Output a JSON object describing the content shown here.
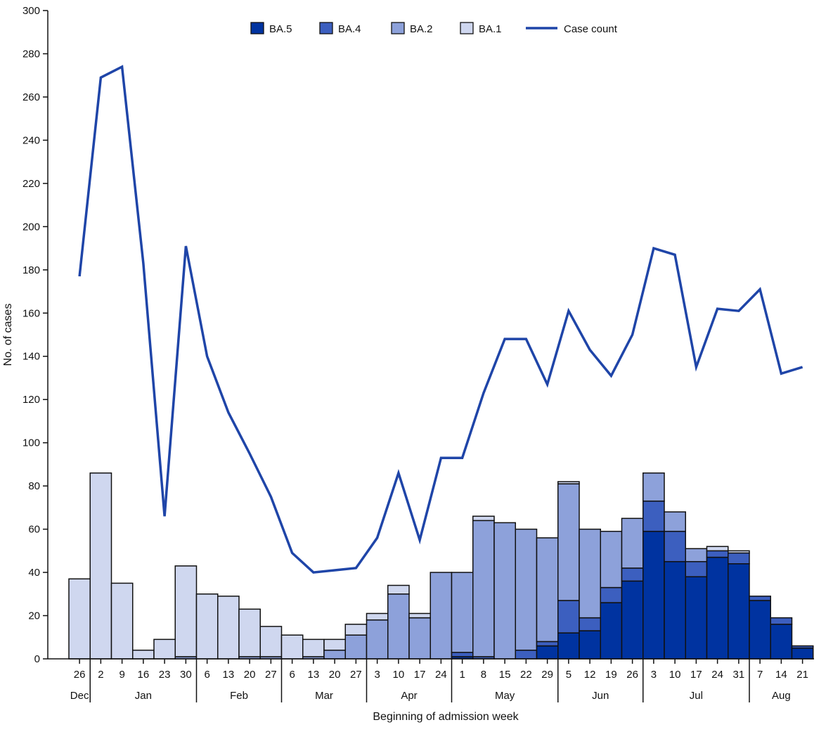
{
  "chart_data": {
    "type": "bar",
    "stacked": true,
    "xlabel": "Beginning of admission week",
    "ylabel": "No. of cases",
    "ylim": [
      0,
      300
    ],
    "yticks": [
      0,
      20,
      40,
      60,
      80,
      100,
      120,
      140,
      160,
      180,
      200,
      220,
      240,
      260,
      280,
      300
    ],
    "legend_position": "top-center",
    "categories": [
      "26",
      "2",
      "9",
      "16",
      "23",
      "30",
      "6",
      "13",
      "20",
      "27",
      "6",
      "13",
      "20",
      "27",
      "3",
      "10",
      "17",
      "24",
      "1",
      "8",
      "15",
      "22",
      "29",
      "5",
      "12",
      "19",
      "26",
      "3",
      "10",
      "17",
      "24",
      "31",
      "7",
      "14",
      "21"
    ],
    "months": [
      {
        "label": "Dec",
        "start": 0,
        "end": 0
      },
      {
        "label": "Jan",
        "start": 1,
        "end": 5
      },
      {
        "label": "Feb",
        "start": 6,
        "end": 9
      },
      {
        "label": "Mar",
        "start": 10,
        "end": 13
      },
      {
        "label": "Apr",
        "start": 14,
        "end": 17
      },
      {
        "label": "May",
        "start": 18,
        "end": 22
      },
      {
        "label": "Jun",
        "start": 23,
        "end": 26
      },
      {
        "label": "Jul",
        "start": 27,
        "end": 31
      },
      {
        "label": "Aug",
        "start": 32,
        "end": 34
      }
    ],
    "series": [
      {
        "name": "BA.5",
        "color": "#0033a0",
        "kind": "bar",
        "values": [
          0,
          0,
          0,
          0,
          0,
          0,
          0,
          0,
          0,
          0,
          0,
          0,
          0,
          0,
          0,
          0,
          0,
          0,
          1,
          0,
          0,
          0,
          6,
          12,
          13,
          26,
          36,
          59,
          45,
          38,
          47,
          44,
          27,
          16,
          5
        ]
      },
      {
        "name": "BA.4",
        "color": "#3c5fbf",
        "kind": "bar",
        "values": [
          0,
          0,
          0,
          0,
          0,
          0,
          0,
          0,
          0,
          0,
          0,
          0,
          0,
          0,
          0,
          0,
          0,
          0,
          2,
          1,
          0,
          4,
          2,
          15,
          6,
          7,
          6,
          14,
          14,
          7,
          3,
          5,
          2,
          3,
          1
        ]
      },
      {
        "name": "BA.2",
        "color": "#8da1da",
        "kind": "bar",
        "values": [
          0,
          0,
          0,
          0,
          0,
          1,
          0,
          0,
          1,
          1,
          0,
          1,
          4,
          11,
          18,
          30,
          19,
          40,
          37,
          63,
          63,
          56,
          48,
          54,
          41,
          26,
          23,
          13,
          9,
          6,
          0,
          0,
          0,
          0,
          0
        ]
      },
      {
        "name": "BA.1",
        "color": "#cfd7ef",
        "kind": "bar",
        "values": [
          37,
          86,
          35,
          4,
          9,
          42,
          30,
          29,
          22,
          14,
          11,
          8,
          5,
          5,
          3,
          4,
          2,
          0,
          0,
          2,
          0,
          0,
          0,
          1,
          0,
          0,
          0,
          0,
          0,
          0,
          2,
          1,
          0,
          0,
          0
        ]
      },
      {
        "name": "Case count",
        "color": "#1f45a8",
        "kind": "line",
        "values": [
          177,
          269,
          274,
          183,
          66,
          191,
          140,
          114,
          95,
          75,
          49,
          40,
          41,
          42,
          56,
          86,
          55,
          93,
          93,
          123,
          148,
          148,
          127,
          161,
          143,
          131,
          150,
          190,
          187,
          135,
          162,
          161,
          171,
          132,
          135
        ]
      }
    ]
  }
}
